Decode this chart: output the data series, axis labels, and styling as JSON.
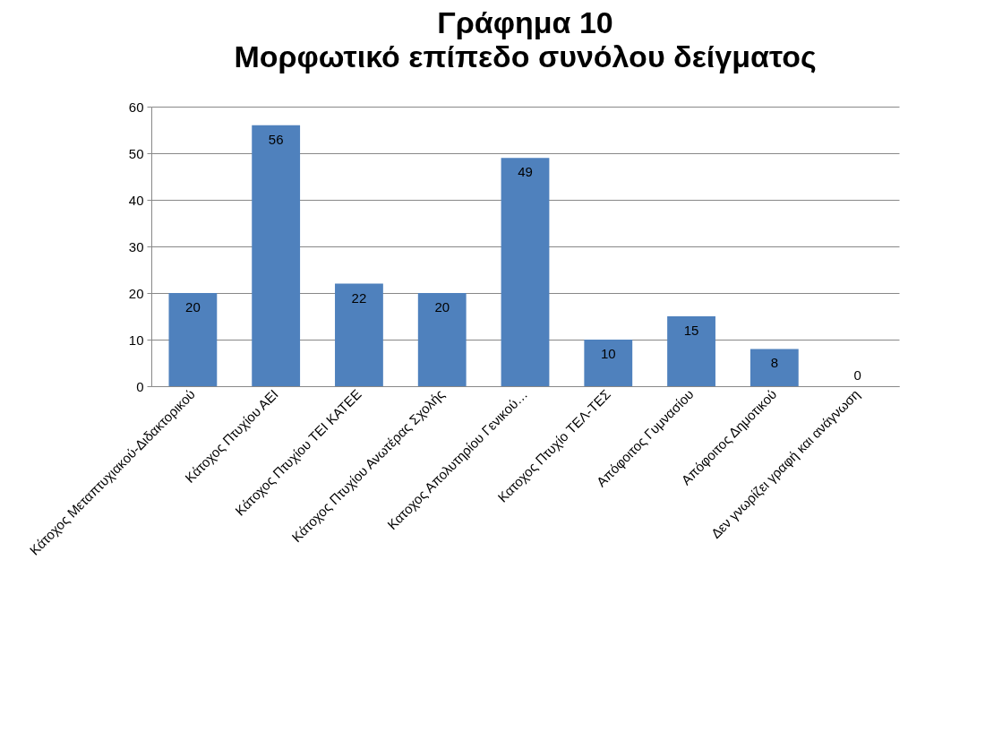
{
  "chart_data": {
    "type": "bar",
    "title": "Γράφημα 10",
    "subtitle": "Μορφωτικό επίπεδο συνόλου δείγματος",
    "categories": [
      "Κάτοχος Μεταπτυχιακού-Διδακτορικού",
      "Κάτοχος Πτυχίου ΑΕΙ",
      "Κάτοχος Πτυχίου ΤΕΙ ΚΑΤΕΕ",
      "Κάτοχος Πτυχίου Ανωτέρας Σχολής",
      "Κατοχος Απολυτηρίου Γενικού…",
      "Κατοχος Πτυχίο ΤΕΛ-ΤΕΣ",
      "Απόφοιτος Γυμνασίου",
      "Απόφοιτος Δημοτικού",
      "Δεν γνωρίζει γραφή και ανάγνωση"
    ],
    "values": [
      20,
      56,
      22,
      20,
      49,
      10,
      15,
      8,
      0
    ],
    "color": "#4f81bd",
    "ylim": [
      0,
      60
    ],
    "yticks": [
      0,
      10,
      20,
      30,
      40,
      50,
      60
    ],
    "grid": "y",
    "data_labels": true
  }
}
